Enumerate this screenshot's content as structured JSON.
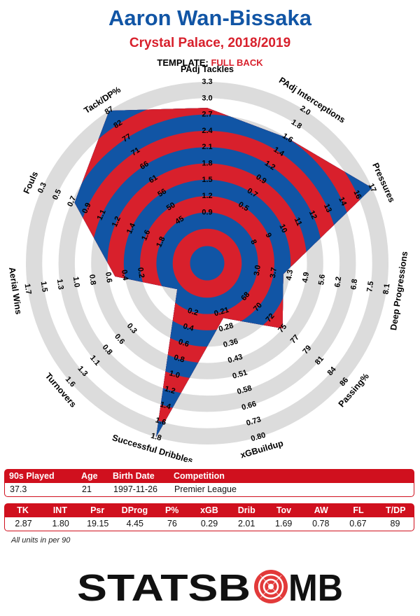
{
  "header": {
    "player": "Aaron Wan-Bissaka",
    "team_season": "Crystal Palace, 2018/2019",
    "template_label": "TEMPLATE:",
    "template_value": "FULL BACK"
  },
  "chart_data": {
    "type": "radar",
    "colors": {
      "band_red": "#d8202c",
      "band_blue": "#1155a5",
      "track": "#dcdcdc"
    },
    "axes": [
      {
        "label": "PAdj Tackles",
        "ticks": [
          "0.9",
          "1.2",
          "1.5",
          "1.8",
          "2.1",
          "2.4",
          "2.7",
          "3.0",
          "3.3"
        ],
        "value": 2.87,
        "min": 0.6,
        "max": 3.3
      },
      {
        "label": "PAdj Interceptions",
        "ticks": [
          "0.5",
          "0.7",
          "0.9",
          "1.2",
          "1.4",
          "1.6",
          "1.8",
          "2.0"
        ],
        "value": 1.8,
        "min": 0.2,
        "max": 2.2
      },
      {
        "label": "Pressures",
        "ticks": [
          "8",
          "9",
          "10",
          "11",
          "12",
          "13",
          "14",
          "16",
          "17"
        ],
        "value": 19.15,
        "min": 7,
        "max": 17
      },
      {
        "label": "Deep Progressions",
        "ticks": [
          "3.0",
          "3.7",
          "4.3",
          "4.9",
          "5.6",
          "6.2",
          "6.8",
          "7.5",
          "8.1"
        ],
        "value": 4.45,
        "min": 2.4,
        "max": 8.1
      },
      {
        "label": "Passing%",
        "ticks": [
          "68",
          "70",
          "72",
          "75",
          "77",
          "79",
          "81",
          "84",
          "86"
        ],
        "value": 76,
        "min": 66,
        "max": 86
      },
      {
        "label": "xGBuildup",
        "ticks": [
          "0.21",
          "0.28",
          "0.36",
          "0.43",
          "0.51",
          "0.58",
          "0.66",
          "0.73",
          "0.80"
        ],
        "value": 0.29,
        "min": 0.13,
        "max": 0.8
      },
      {
        "label": "Successful Dribbles",
        "ticks": [
          "0.2",
          "0.4",
          "0.6",
          "0.8",
          "1.0",
          "1.2",
          "1.4",
          "1.6",
          "1.8"
        ],
        "value": 2.01,
        "min": 0.0,
        "max": 1.8
      },
      {
        "label": "Turnovers",
        "ticks": [
          "0.3",
          "0.6",
          "0.8",
          "1.1",
          "1.3",
          "1.6"
        ],
        "value": 1.69,
        "min": 1.9,
        "max": 0.3
      },
      {
        "label": "Aerial Wins",
        "ticks": [
          "0.2",
          "0.4",
          "0.6",
          "0.8",
          "1.0",
          "1.3",
          "1.5",
          "1.7"
        ],
        "value": 0.78,
        "min": 0.0,
        "max": 1.7
      },
      {
        "label": "Fouls",
        "ticks": [
          "1.8",
          "1.6",
          "1.4",
          "1.2",
          "1.1",
          "0.9",
          "0.7",
          "0.5",
          "0.3"
        ],
        "value": 0.67,
        "min": 2.0,
        "max": 0.3
      },
      {
        "label": "Tack/DP%",
        "ticks": [
          "45",
          "50",
          "56",
          "61",
          "66",
          "71",
          "77",
          "82",
          "87"
        ],
        "value": 89,
        "min": 40,
        "max": 87
      }
    ]
  },
  "summary": {
    "headers": [
      "90s Played",
      "Age",
      "Birth Date",
      "Competition"
    ],
    "values": [
      "37.3",
      "21",
      "1997-11-26",
      "Premier League"
    ]
  },
  "stats": {
    "headers": [
      "TK",
      "INT",
      "Psr",
      "DProg",
      "P%",
      "xGB",
      "Drib",
      "Tov",
      "AW",
      "FL",
      "T/DP"
    ],
    "values": [
      "2.87",
      "1.80",
      "19.15",
      "4.45",
      "76",
      "0.29",
      "2.01",
      "1.69",
      "0.78",
      "0.67",
      "89"
    ]
  },
  "footnote": "All units in per 90",
  "logo": {
    "text_left": "STATSB",
    "text_right": "MB"
  }
}
